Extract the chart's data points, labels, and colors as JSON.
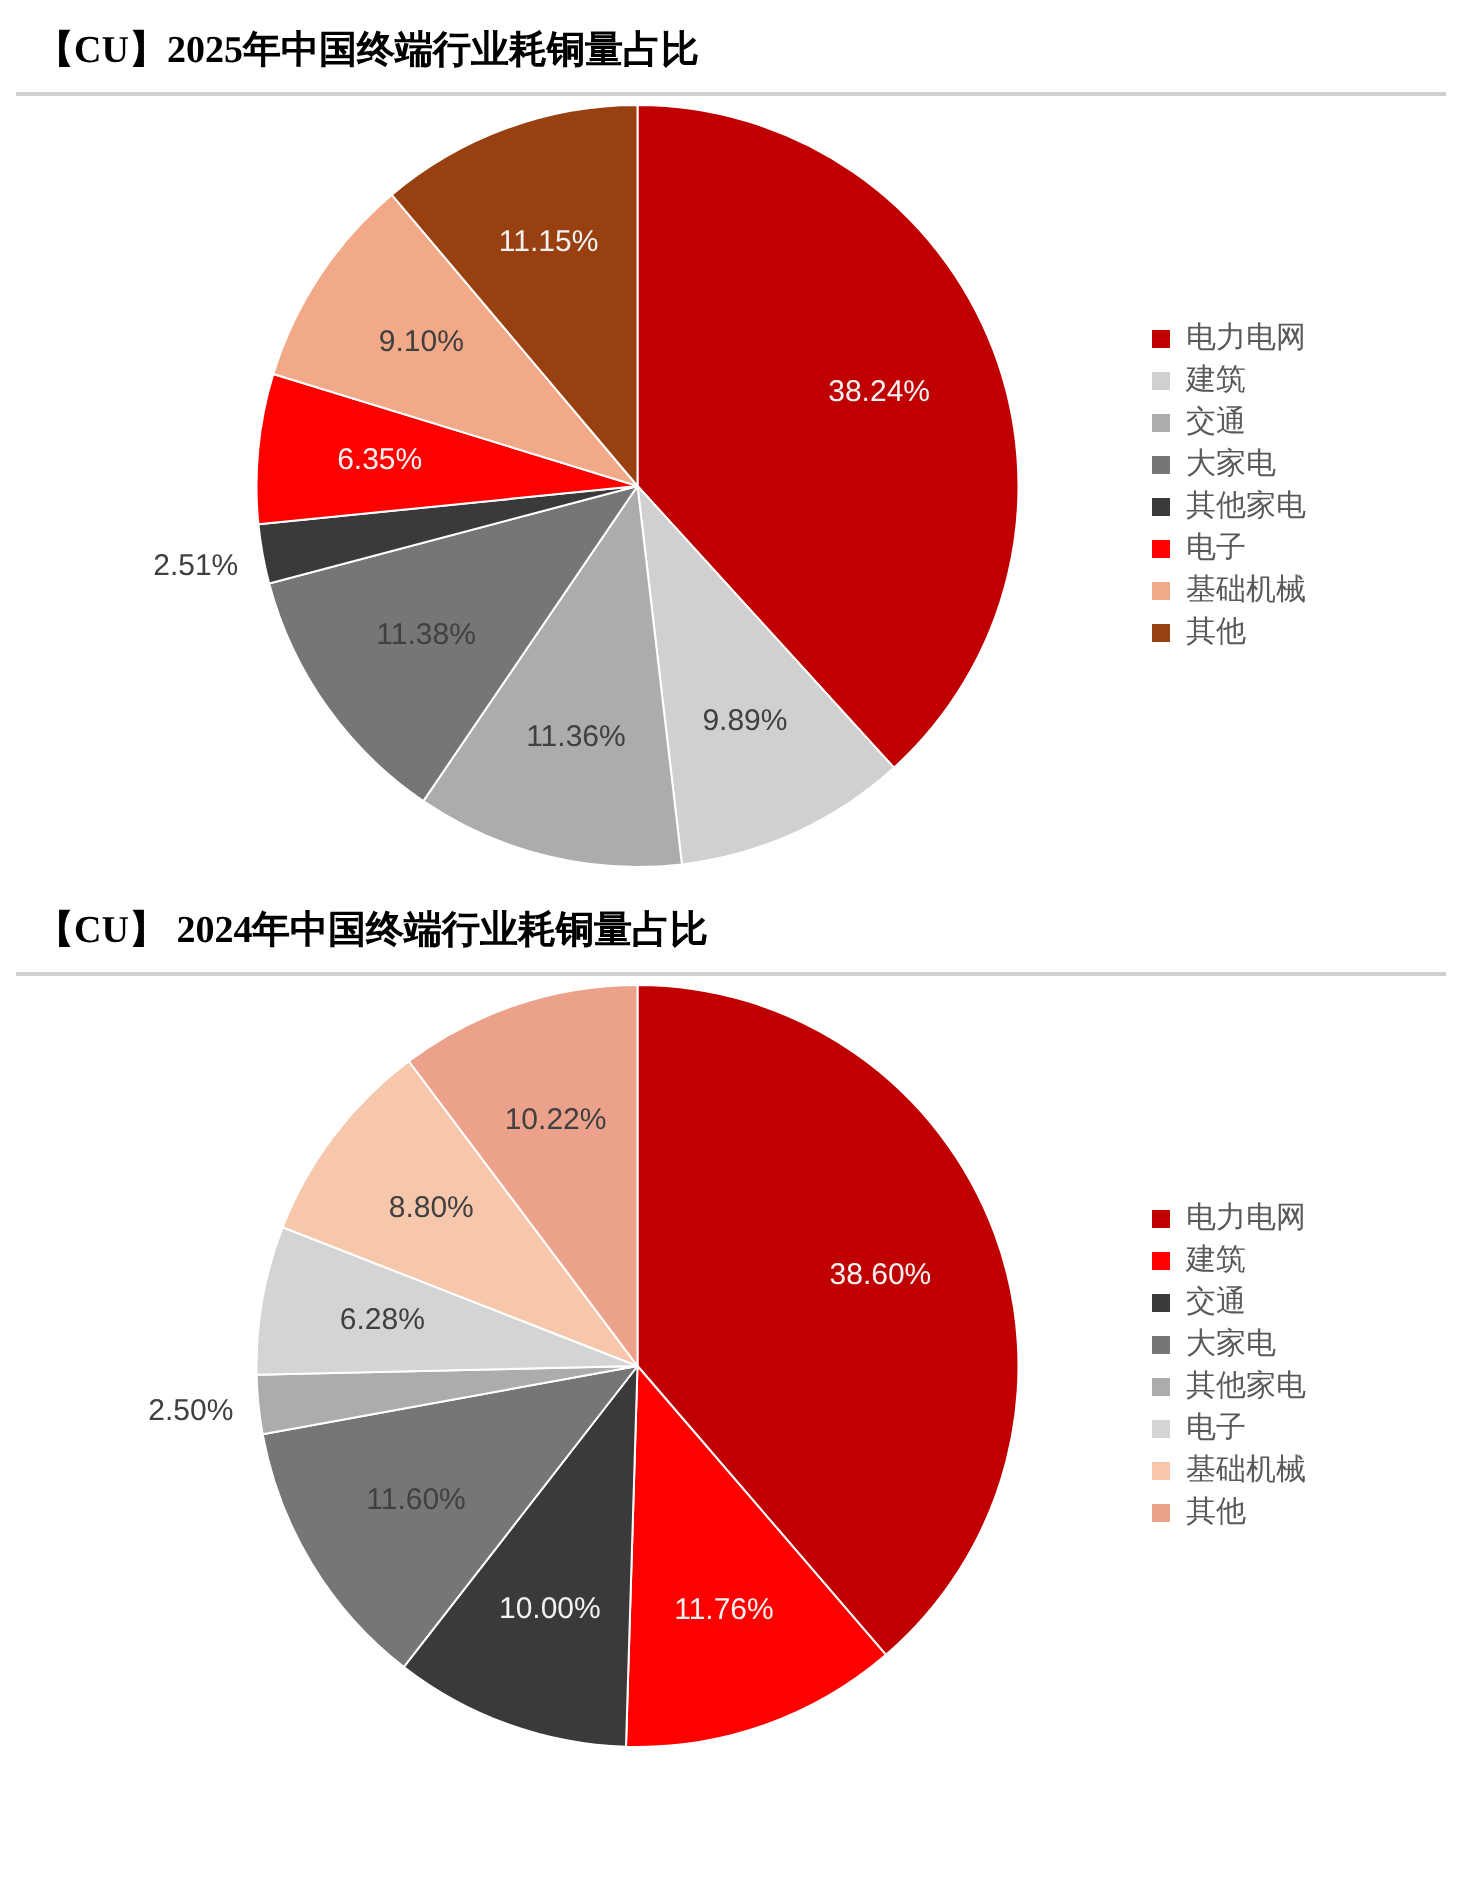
{
  "chart_data": [
    {
      "type": "pie",
      "title": "【CU】2025年中国终端行业耗铜量占比",
      "categories": [
        "电力电网",
        "建筑",
        "交通",
        "大家电",
        "其他家电",
        "电子",
        "基础机械",
        "其他"
      ],
      "values": [
        38.24,
        9.89,
        11.36,
        11.38,
        2.51,
        6.35,
        9.1,
        11.15
      ],
      "colors": [
        "#c00000",
        "#d0d0d0",
        "#acacac",
        "#767676",
        "#3a3a3a",
        "#ff0000",
        "#f2a987",
        "#984010"
      ],
      "value_labels": [
        "38.24%",
        "9.89%",
        "11.36%",
        "11.38%",
        "2.51%",
        "6.35%",
        "9.10%",
        "11.15%"
      ],
      "legend": "right"
    },
    {
      "type": "pie",
      "title": "【CU】 2024年中国终端行业耗铜量占比",
      "categories": [
        "电力电网",
        "建筑",
        "交通",
        "大家电",
        "其他家电",
        "电子",
        "基础机械",
        "其他"
      ],
      "values": [
        38.6,
        11.76,
        10.0,
        11.6,
        2.5,
        6.28,
        8.8,
        10.22
      ],
      "colors": [
        "#c00000",
        "#ff0000",
        "#3a3a3a",
        "#767676",
        "#acacac",
        "#d4d4d4",
        "#f6c7ab",
        "#eca28a"
      ],
      "value_labels": [
        "38.60%",
        "11.76%",
        "10.00%",
        "11.60%",
        "2.50%",
        "6.28%",
        "8.80%",
        "10.22%"
      ],
      "legend": "right"
    }
  ]
}
